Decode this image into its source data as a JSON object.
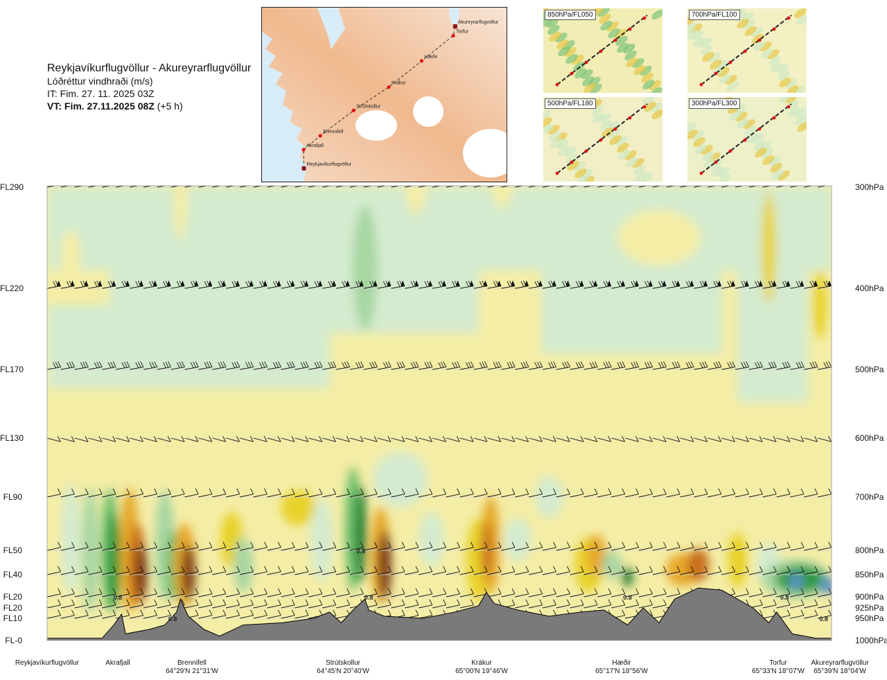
{
  "header": {
    "route_title": "Reykjavíkurflugvöllur - Akureyrarflugvöllur",
    "parameter": "Lóðréttur vindhraði (m/s)",
    "issue_time": "IT: Fim. 27. 11. 2025 03Z",
    "valid_time": "VT: Fim. 27.11.2025 08Z",
    "valid_offset": "(+5 h)"
  },
  "route_map": {
    "points": [
      {
        "name": "Reykjavíkurflugvöllur",
        "lon": -21.94,
        "lat": 64.13
      },
      {
        "name": "Akrafjall",
        "lon": -21.95,
        "lat": 64.33
      },
      {
        "name": "Brennifell",
        "lon": -21.52,
        "lat": 64.48
      },
      {
        "name": "Strútskollur",
        "lon": -20.67,
        "lat": 64.75
      },
      {
        "name": "Krákur",
        "lon": -19.77,
        "lat": 65.0
      },
      {
        "name": "Hæðir",
        "lon": -18.93,
        "lat": 65.28
      },
      {
        "name": "Torfur",
        "lon": -18.12,
        "lat": 65.55
      },
      {
        "name": "Akureyrarflugvöllur",
        "lon": -18.07,
        "lat": 65.65
      }
    ]
  },
  "mini_maps": [
    {
      "label": "850hPa/FL050"
    },
    {
      "label": "700hPa/FL100"
    },
    {
      "label": "500hPa/FL180"
    },
    {
      "label": "300hPa/FL300"
    }
  ],
  "colors": {
    "strong_down": "#7b3b12",
    "down_2": "#c8701e",
    "down_3": "#e6a82a",
    "down_4": "#e8d22b",
    "weak_down": "#f4eda6",
    "neutral": "#fffdf0",
    "weak_up": "#d4ebcf",
    "up_2": "#a8d6a3",
    "up_3": "#6bbd6b",
    "up_4": "#2f9a3c",
    "strong_up": "#1a7a2a",
    "extreme_up": "#5b8fc9",
    "terrain": "#7a7a7a"
  },
  "chart_data": {
    "type": "heatmap",
    "title": "Reykjavíkurflugvöllur - Akureyrarflugvöllur",
    "subtitle": "Lóðréttur vindhraði (m/s)",
    "y_left_ticks": [
      "FL290",
      "FL220",
      "FL170",
      "FL130",
      "FL90",
      "FL50",
      "FL40",
      "FL20",
      "FL20",
      "FL10",
      "FL-0"
    ],
    "y_right_ticks": [
      "300hPa",
      "400hPa",
      "500hPa",
      "600hPa",
      "700hPa",
      "800hPa",
      "850hPa",
      "900hPa",
      "925hPa",
      "950hPa",
      "1000hPa"
    ],
    "pressure_levels": [
      300,
      400,
      500,
      600,
      700,
      800,
      850,
      900,
      925,
      950,
      1000
    ],
    "stations": [
      {
        "name": "Reykjavíkurflugvöllur",
        "coord": "",
        "pos": 0.0
      },
      {
        "name": "Akrafjall",
        "coord": "",
        "pos": 0.09
      },
      {
        "name": "Brennifell",
        "coord": "64°29'N 21°31'W",
        "pos": 0.19
      },
      {
        "name": "Strútskollur",
        "coord": "64°45'N 20°40'W",
        "pos": 0.38
      },
      {
        "name": "Krákur",
        "coord": "65°00'N 19°46'W",
        "pos": 0.56
      },
      {
        "name": "Hæðir",
        "coord": "65°17'N 18°56'W",
        "pos": 0.73
      },
      {
        "name": "Torfur",
        "coord": "65°33'N 18°07'W",
        "pos": 0.94
      },
      {
        "name": "Akureyrarflugvöllur",
        "coord": "65°39'N 18°04'W",
        "pos": 1.0
      }
    ],
    "contour_labels": [
      {
        "text": "0.8",
        "pos": 0.09,
        "p": 900
      },
      {
        "text": "0.8",
        "pos": 0.16,
        "p": 950
      },
      {
        "text": "0.8",
        "pos": 0.4,
        "p": 800
      },
      {
        "text": "0.8",
        "pos": 0.41,
        "p": 900
      },
      {
        "text": "0.8",
        "pos": 0.74,
        "p": 900
      },
      {
        "text": "0.8",
        "pos": 0.94,
        "p": 900
      },
      {
        "text": "0.8",
        "pos": 0.99,
        "p": 950
      }
    ],
    "terrain_elevation_hpa": [
      {
        "pos": 0.0,
        "p": 995
      },
      {
        "pos": 0.07,
        "p": 995
      },
      {
        "pos": 0.085,
        "p": 965
      },
      {
        "pos": 0.095,
        "p": 940
      },
      {
        "pos": 0.1,
        "p": 985
      },
      {
        "pos": 0.13,
        "p": 975
      },
      {
        "pos": 0.15,
        "p": 965
      },
      {
        "pos": 0.165,
        "p": 935
      },
      {
        "pos": 0.17,
        "p": 905
      },
      {
        "pos": 0.175,
        "p": 925
      },
      {
        "pos": 0.18,
        "p": 945
      },
      {
        "pos": 0.2,
        "p": 975
      },
      {
        "pos": 0.22,
        "p": 990
      },
      {
        "pos": 0.25,
        "p": 965
      },
      {
        "pos": 0.3,
        "p": 960
      },
      {
        "pos": 0.34,
        "p": 950
      },
      {
        "pos": 0.36,
        "p": 935
      },
      {
        "pos": 0.375,
        "p": 960
      },
      {
        "pos": 0.39,
        "p": 930
      },
      {
        "pos": 0.405,
        "p": 905
      },
      {
        "pos": 0.41,
        "p": 930
      },
      {
        "pos": 0.43,
        "p": 945
      },
      {
        "pos": 0.48,
        "p": 950
      },
      {
        "pos": 0.52,
        "p": 935
      },
      {
        "pos": 0.55,
        "p": 920
      },
      {
        "pos": 0.56,
        "p": 890
      },
      {
        "pos": 0.57,
        "p": 915
      },
      {
        "pos": 0.6,
        "p": 930
      },
      {
        "pos": 0.64,
        "p": 945
      },
      {
        "pos": 0.68,
        "p": 935
      },
      {
        "pos": 0.71,
        "p": 930
      },
      {
        "pos": 0.74,
        "p": 965
      },
      {
        "pos": 0.76,
        "p": 925
      },
      {
        "pos": 0.78,
        "p": 960
      },
      {
        "pos": 0.8,
        "p": 905
      },
      {
        "pos": 0.83,
        "p": 880
      },
      {
        "pos": 0.86,
        "p": 885
      },
      {
        "pos": 0.88,
        "p": 905
      },
      {
        "pos": 0.9,
        "p": 925
      },
      {
        "pos": 0.92,
        "p": 960
      },
      {
        "pos": 0.93,
        "p": 935
      },
      {
        "pos": 0.95,
        "p": 985
      },
      {
        "pos": 0.98,
        "p": 995
      },
      {
        "pos": 1.0,
        "p": 995
      }
    ],
    "grid": false
  }
}
